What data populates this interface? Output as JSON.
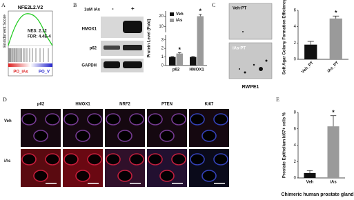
{
  "panel_labels": [
    "A",
    "B",
    "C",
    "D",
    "E"
  ],
  "panel_a": {
    "title": "NFE2L2.V2",
    "ylabel": "Enrichment Score",
    "nes": "NES: 2.12",
    "fdr": "FDR: 4.4E-4",
    "left_label": "PO_iAs",
    "right_label": "PO_V"
  },
  "panel_b": {
    "treatment": "1uM iAs",
    "minus": "-",
    "plus": "+",
    "proteins": [
      "HMOX1",
      "p62",
      "GAPDH"
    ]
  },
  "panel_c": {
    "images": [
      "Veh-PT",
      "iAs-PT"
    ],
    "caption": "RWPE1"
  },
  "panel_d": {
    "columns": [
      "p62",
      "HMOX1",
      "NRF2",
      "PTEN",
      "Ki67"
    ],
    "rows": [
      "Veh",
      "iAs"
    ]
  },
  "chart_data": [
    {
      "type": "bar",
      "ylabel": "Protein Level (Fold)",
      "categories": [
        "p62",
        "HMOX1"
      ],
      "series": [
        {
          "name": "Veh",
          "color": "#111111",
          "values": [
            1,
            1
          ],
          "errors": [
            0.05,
            0.05
          ]
        },
        {
          "name": "iAs",
          "color": "#9a9a9a",
          "values": [
            1.4,
            20
          ],
          "errors": [
            0.1,
            1.8
          ],
          "annotations": [
            "*",
            "*"
          ]
        }
      ],
      "ylim": [
        0,
        25
      ],
      "ybreak": [
        3.5,
        5
      ],
      "yticks": [
        0,
        1,
        2,
        3,
        10,
        20
      ],
      "legend": "top-left"
    },
    {
      "type": "bar",
      "ylabel": "Soft Agar Colony Formation Efficiency%",
      "categories": [
        "Veh_PT",
        "iAs_PT"
      ],
      "values": [
        1.8,
        5.0
      ],
      "errors": [
        0.4,
        0.3
      ],
      "annotations": [
        null,
        "*"
      ],
      "colors": [
        "#111111",
        "#9a9a9a"
      ],
      "ylim": [
        0,
        6
      ],
      "yticks": [
        0,
        2,
        4,
        6
      ],
      "xtick_rotation": -45
    },
    {
      "type": "bar",
      "ylabel": "Prostate Epithelium ki67+ cells %",
      "xlabel": "Chimeric human prostate gland",
      "categories": [
        "Veh",
        "iAs"
      ],
      "values": [
        0.6,
        6.3
      ],
      "errors": [
        0.3,
        1.3
      ],
      "annotations": [
        null,
        "*"
      ],
      "colors": [
        "#111111",
        "#9a9a9a"
      ],
      "ylim": [
        0,
        8
      ],
      "yticks": [
        0,
        2,
        4,
        6,
        8
      ]
    }
  ]
}
